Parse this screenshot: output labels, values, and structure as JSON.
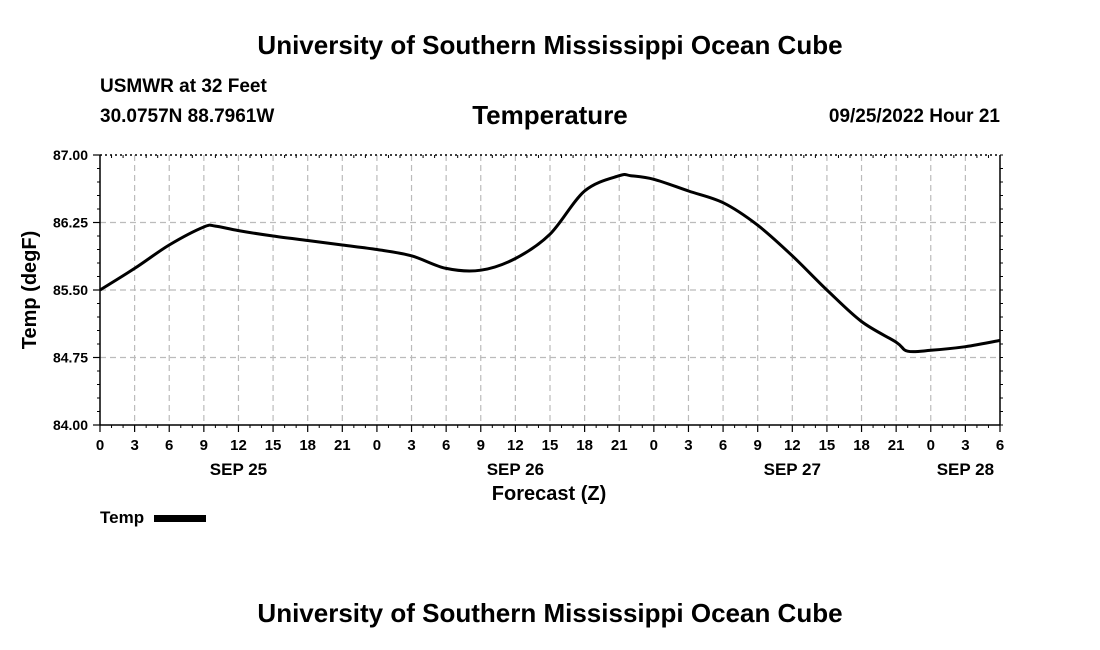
{
  "page": {
    "title": "University of Southern Mississippi Ocean Cube",
    "footer_title": "University of Southern Mississippi Ocean Cube"
  },
  "header": {
    "station": "USMWR at 32 Feet",
    "coordinates": "30.0757N  88.7961W",
    "run_time": "09/25/2022 Hour 21"
  },
  "legend": {
    "label": "Temp"
  },
  "colors": {
    "line": "#000000",
    "grid": "#bbbbbb"
  },
  "chart_data": {
    "type": "line",
    "title": "Temperature",
    "xlabel": "Forecast (Z)",
    "ylabel": "Temp (degF)",
    "ylim": [
      84.0,
      87.0
    ],
    "xlim": [
      0,
      78
    ],
    "y_ticks": [
      "84.00",
      "84.75",
      "85.50",
      "86.25",
      "87.00"
    ],
    "y_tick_values": [
      84.0,
      84.75,
      85.5,
      86.25,
      87.0
    ],
    "x_ticks": [
      "0",
      "3",
      "6",
      "9",
      "12",
      "15",
      "18",
      "21",
      "0",
      "3",
      "6",
      "9",
      "12",
      "15",
      "18",
      "21",
      "0",
      "3",
      "6",
      "9",
      "12",
      "15",
      "18",
      "21",
      "0",
      "3",
      "6"
    ],
    "date_labels": [
      {
        "label": "SEP 25",
        "hour": 12
      },
      {
        "label": "SEP 26",
        "hour": 36
      },
      {
        "label": "SEP 27",
        "hour": 60
      },
      {
        "label": "SEP 28",
        "hour": 75
      }
    ],
    "grid": true,
    "series": [
      {
        "name": "Temp",
        "x": [
          0,
          3,
          6,
          9,
          10,
          12,
          15,
          18,
          21,
          24,
          27,
          30,
          33,
          36,
          39,
          42,
          45,
          46,
          48,
          51,
          54,
          57,
          60,
          63,
          66,
          69,
          70,
          72,
          75,
          78
        ],
        "y": [
          85.5,
          85.74,
          86.0,
          86.2,
          86.21,
          86.16,
          86.1,
          86.05,
          86.0,
          85.95,
          85.88,
          85.74,
          85.72,
          85.85,
          86.12,
          86.6,
          86.77,
          86.77,
          86.73,
          86.6,
          86.47,
          86.22,
          85.88,
          85.5,
          85.15,
          84.92,
          84.82,
          84.83,
          84.87,
          84.94
        ]
      }
    ]
  }
}
